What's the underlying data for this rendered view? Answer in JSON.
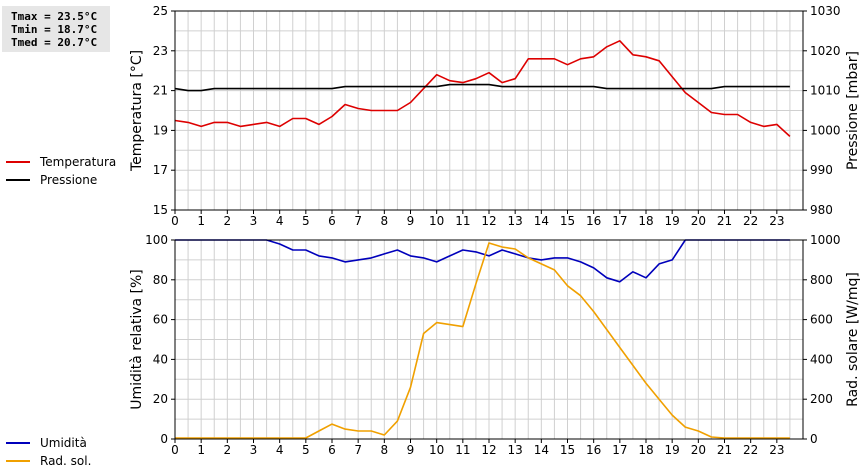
{
  "stats": {
    "tmax": "Tmax = 23.5°C",
    "tmin": "Tmin = 18.7°C",
    "tmed": "Tmed = 20.7°C"
  },
  "colors": {
    "temperature": "#dd0000",
    "pressure": "#000000",
    "humidity": "#0000bb",
    "radiation": "#f0a000",
    "grid": "#d0d0d0",
    "stats_bg": "#e6e6e6"
  },
  "legend_top": [
    {
      "label": "Temperatura",
      "color": "#dd0000"
    },
    {
      "label": "Pressione",
      "color": "#000000"
    }
  ],
  "legend_bottom": [
    {
      "label": "Umidità",
      "color": "#0000bb"
    },
    {
      "label": "Rad. sol.",
      "color": "#f0a000"
    }
  ],
  "chart_data": [
    {
      "type": "line",
      "xlim": [
        0,
        24
      ],
      "x_ticks": [
        0,
        1,
        2,
        3,
        4,
        5,
        6,
        7,
        8,
        9,
        10,
        11,
        12,
        13,
        14,
        15,
        16,
        17,
        18,
        19,
        20,
        21,
        22,
        23
      ],
      "y_left": {
        "label": "Temperatura [°C]",
        "lim": [
          15,
          25
        ],
        "ticks": [
          15,
          17,
          19,
          21,
          23,
          25
        ]
      },
      "y_right": {
        "label": "Pressione [mbar]",
        "lim": [
          980,
          1030
        ],
        "ticks": [
          980,
          990,
          1000,
          1010,
          1020,
          1030
        ]
      },
      "grid": true,
      "series": [
        {
          "name": "Temperatura",
          "axis": "left",
          "color": "#dd0000",
          "x": [
            0,
            0.5,
            1,
            1.5,
            2,
            2.5,
            3,
            3.5,
            4,
            4.5,
            5,
            5.5,
            6,
            6.5,
            7,
            7.5,
            8,
            8.5,
            9,
            9.5,
            10,
            10.5,
            11,
            11.5,
            12,
            12.5,
            13,
            13.5,
            14,
            14.5,
            15,
            15.5,
            16,
            16.5,
            17,
            17.5,
            18,
            18.5,
            19,
            19.5,
            20,
            20.5,
            21,
            21.5,
            22,
            22.5,
            23,
            23.5
          ],
          "y": [
            19.5,
            19.4,
            19.2,
            19.4,
            19.4,
            19.2,
            19.3,
            19.4,
            19.2,
            19.6,
            19.6,
            19.3,
            19.7,
            20.3,
            20.1,
            20.0,
            20.0,
            20.0,
            20.4,
            21.1,
            21.8,
            21.5,
            21.4,
            21.6,
            21.9,
            21.4,
            21.6,
            22.6,
            22.6,
            22.6,
            22.3,
            22.6,
            22.7,
            23.2,
            23.5,
            22.8,
            22.7,
            22.5,
            21.7,
            20.9,
            20.4,
            19.9,
            19.8,
            19.8,
            19.4,
            19.2,
            19.3,
            18.7
          ]
        },
        {
          "name": "Pressione",
          "axis": "right",
          "color": "#000000",
          "x": [
            0,
            0.5,
            1,
            1.5,
            2,
            2.5,
            3,
            3.5,
            4,
            4.5,
            5,
            5.5,
            6,
            6.5,
            7,
            7.5,
            8,
            8.5,
            9,
            9.5,
            10,
            10.5,
            11,
            11.5,
            12,
            12.5,
            13,
            13.5,
            14,
            14.5,
            15,
            15.5,
            16,
            16.5,
            17,
            17.5,
            18,
            18.5,
            19,
            19.5,
            20,
            20.5,
            21,
            21.5,
            22,
            22.5,
            23,
            23.5
          ],
          "y": [
            1010.5,
            1010,
            1010,
            1010.5,
            1010.5,
            1010.5,
            1010.5,
            1010.5,
            1010.5,
            1010.5,
            1010.5,
            1010.5,
            1010.5,
            1011,
            1011,
            1011,
            1011,
            1011,
            1011,
            1011,
            1011,
            1011.5,
            1011.5,
            1011.5,
            1011.5,
            1011,
            1011,
            1011,
            1011,
            1011,
            1011,
            1011,
            1011,
            1010.5,
            1010.5,
            1010.5,
            1010.5,
            1010.5,
            1010.5,
            1010.5,
            1010.5,
            1010.5,
            1011,
            1011,
            1011,
            1011,
            1011,
            1011
          ]
        }
      ]
    },
    {
      "type": "line",
      "xlim": [
        0,
        24
      ],
      "x_ticks": [
        0,
        1,
        2,
        3,
        4,
        5,
        6,
        7,
        8,
        9,
        10,
        11,
        12,
        13,
        14,
        15,
        16,
        17,
        18,
        19,
        20,
        21,
        22,
        23
      ],
      "y_left": {
        "label": "Umidità relativa [%]",
        "lim": [
          0,
          100
        ],
        "ticks": [
          0,
          20,
          40,
          60,
          80,
          100
        ]
      },
      "y_right": {
        "label": "Rad. solare [W/mq]",
        "lim": [
          0,
          1000
        ],
        "ticks": [
          0,
          200,
          400,
          600,
          800,
          1000
        ]
      },
      "grid": true,
      "series": [
        {
          "name": "Umidità",
          "axis": "left",
          "color": "#0000bb",
          "x": [
            0,
            0.5,
            1,
            1.5,
            2,
            2.5,
            3,
            3.5,
            4,
            4.5,
            5,
            5.5,
            6,
            6.5,
            7,
            7.5,
            8,
            8.5,
            9,
            9.5,
            10,
            10.5,
            11,
            11.5,
            12,
            12.5,
            13,
            13.5,
            14,
            14.5,
            15,
            15.5,
            16,
            16.5,
            17,
            17.5,
            18,
            18.5,
            19,
            19.5,
            20,
            20.5,
            21,
            21.5,
            22,
            22.5,
            23,
            23.5
          ],
          "y": [
            100,
            100,
            100,
            100,
            100,
            100,
            100,
            100,
            98,
            95,
            95,
            92,
            91,
            89,
            90,
            91,
            93,
            95,
            92,
            91,
            89,
            92,
            95,
            94,
            92,
            95,
            93,
            91,
            90,
            91,
            91,
            89,
            86,
            81,
            79,
            84,
            81,
            88,
            90,
            100,
            100,
            100,
            100,
            100,
            100,
            100,
            100,
            100
          ]
        },
        {
          "name": "Rad. sol.",
          "axis": "right",
          "color": "#f0a000",
          "x": [
            0,
            0.5,
            1,
            1.5,
            2,
            2.5,
            3,
            3.5,
            4,
            4.5,
            5,
            5.5,
            6,
            6.5,
            7,
            7.5,
            8,
            8.5,
            9,
            9.5,
            10,
            10.5,
            11,
            11.5,
            12,
            12.5,
            13,
            13.5,
            14,
            14.5,
            15,
            15.5,
            16,
            16.5,
            17,
            17.5,
            18,
            18.5,
            19,
            19.5,
            20,
            20.5,
            21,
            21.5,
            22,
            22.5,
            23,
            23.5
          ],
          "y": [
            5,
            5,
            5,
            5,
            5,
            5,
            5,
            5,
            5,
            5,
            5,
            40,
            75,
            50,
            40,
            40,
            20,
            90,
            260,
            530,
            585,
            575,
            565,
            780,
            985,
            965,
            955,
            910,
            880,
            850,
            770,
            720,
            640,
            550,
            460,
            370,
            280,
            200,
            120,
            60,
            40,
            10,
            5,
            5,
            5,
            5,
            5,
            5
          ]
        }
      ]
    }
  ]
}
